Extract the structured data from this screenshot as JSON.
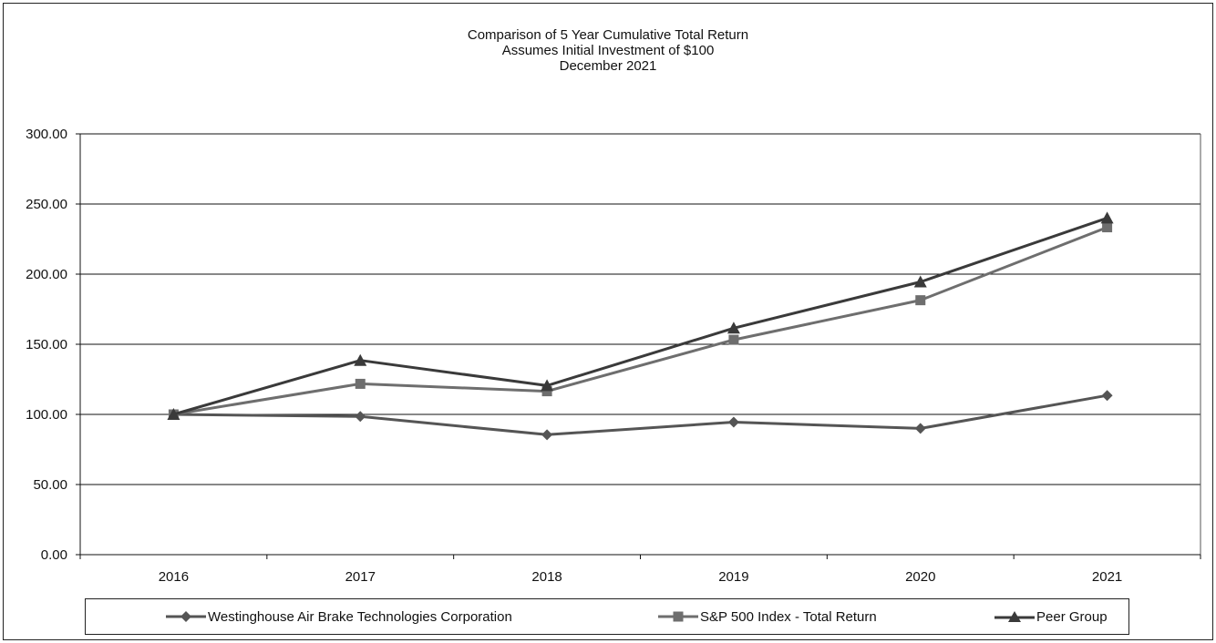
{
  "chart_data": {
    "type": "line",
    "title": "Comparison  of 5 Year Cumulative  Total Return",
    "subtitle": "Assumes Initial Investment  of $100",
    "subtitle2": "December  2021",
    "xlabel": "",
    "ylabel": "",
    "categories": [
      "2016",
      "2017",
      "2018",
      "2019",
      "2020",
      "2021"
    ],
    "ylim": [
      0,
      300
    ],
    "yticks": [
      "0.00",
      "50.00",
      "100.00",
      "150.00",
      "200.00",
      "250.00",
      "300.00"
    ],
    "ytick_values": [
      0,
      50,
      100,
      150,
      200,
      250,
      300
    ],
    "grid": "horizontal",
    "legend_position": "bottom",
    "series": [
      {
        "name": "Westinghouse Air Brake Technologies Corporation",
        "marker": "diamond",
        "color": "#555555",
        "values": [
          100,
          98.5,
          85.5,
          94.5,
          90,
          113.5
        ]
      },
      {
        "name": "S&P 500 Index - Total Return",
        "marker": "square",
        "color": "#6e6e6e",
        "values": [
          100,
          121.8,
          116.5,
          153.2,
          181.4,
          233.4
        ]
      },
      {
        "name": "Peer Group",
        "marker": "triangle",
        "color": "#3a3a3a",
        "values": [
          100,
          138.5,
          120.5,
          161.5,
          194.5,
          240
        ]
      }
    ]
  }
}
